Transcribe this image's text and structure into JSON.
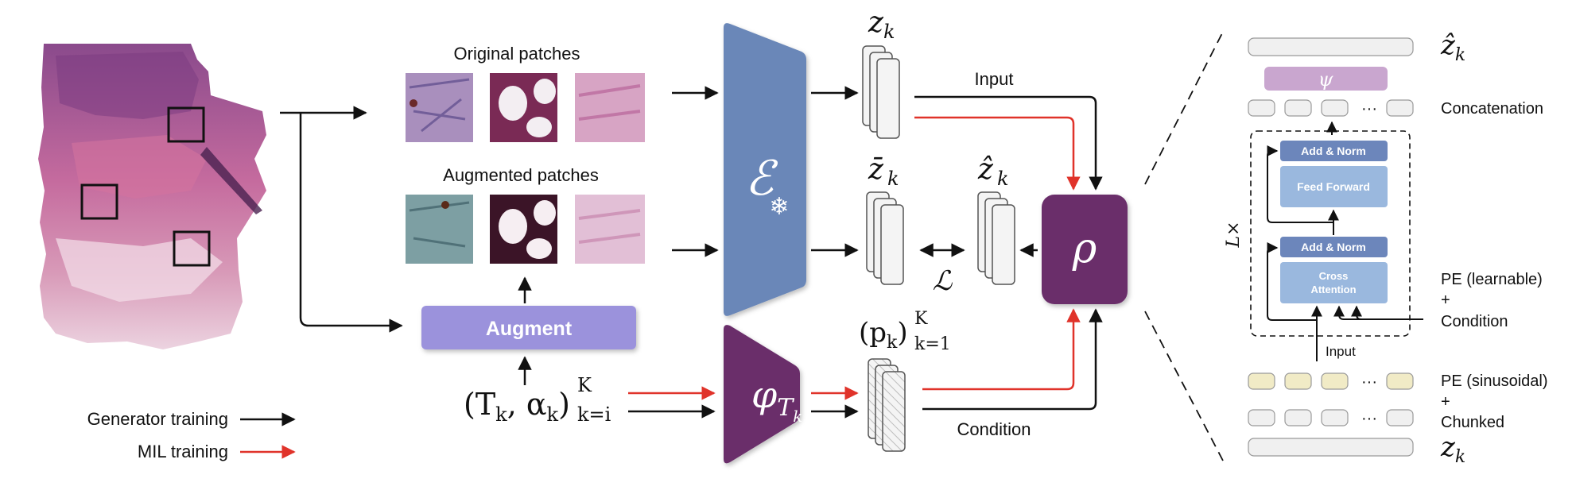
{
  "labels": {
    "original_patches": "Original patches",
    "augmented_patches": "Augmented patches",
    "augment": "Augment",
    "input_top": "Input",
    "condition": "Condition",
    "loss": "ℒ",
    "encoder": "ℰ",
    "snowflake": "❄",
    "rho": "ρ",
    "psi": "ψ",
    "phi": "φ",
    "phi_sub": "T",
    "phi_sub2": "k",
    "z": "z",
    "k": "k",
    "z_bar_label": "z̄",
    "z_hat_label": "ẑ",
    "p_label": "(p",
    "p_close": ")",
    "p_sup": "K",
    "p_sub": "k=1",
    "tk_label": "(T",
    "tk_mid": ", α",
    "tk_close": ")",
    "tk_sup": "K",
    "tk_sub": "k=i"
  },
  "legend": {
    "generator": "Generator training",
    "mil": "MIL training"
  },
  "transformer": {
    "concatenation": "Concatenation",
    "add_norm": "Add & Norm",
    "feed_forward": "Feed Forward",
    "cross_attention_1": "Cross",
    "cross_attention_2": "Attention",
    "lx": "L×",
    "input": "Input",
    "pe_learnable": "PE (learnable)",
    "plus1": "+",
    "condition": "Condition",
    "pe_sinusoidal": "PE (sinusoidal)",
    "plus2": "+",
    "chunked": "Chunked",
    "dots": "···"
  },
  "colors": {
    "encoder_blue": "#6a87b8",
    "purple_dark": "#6b2f6b",
    "augment_lavender": "#9b92dc",
    "psi_lavender": "#c9a6cf",
    "add_norm_blue": "#6c86bb",
    "ff_blue": "#9ab8de",
    "pe_yellow": "#f1ebc6",
    "red": "#e0332a",
    "black": "#111111"
  }
}
